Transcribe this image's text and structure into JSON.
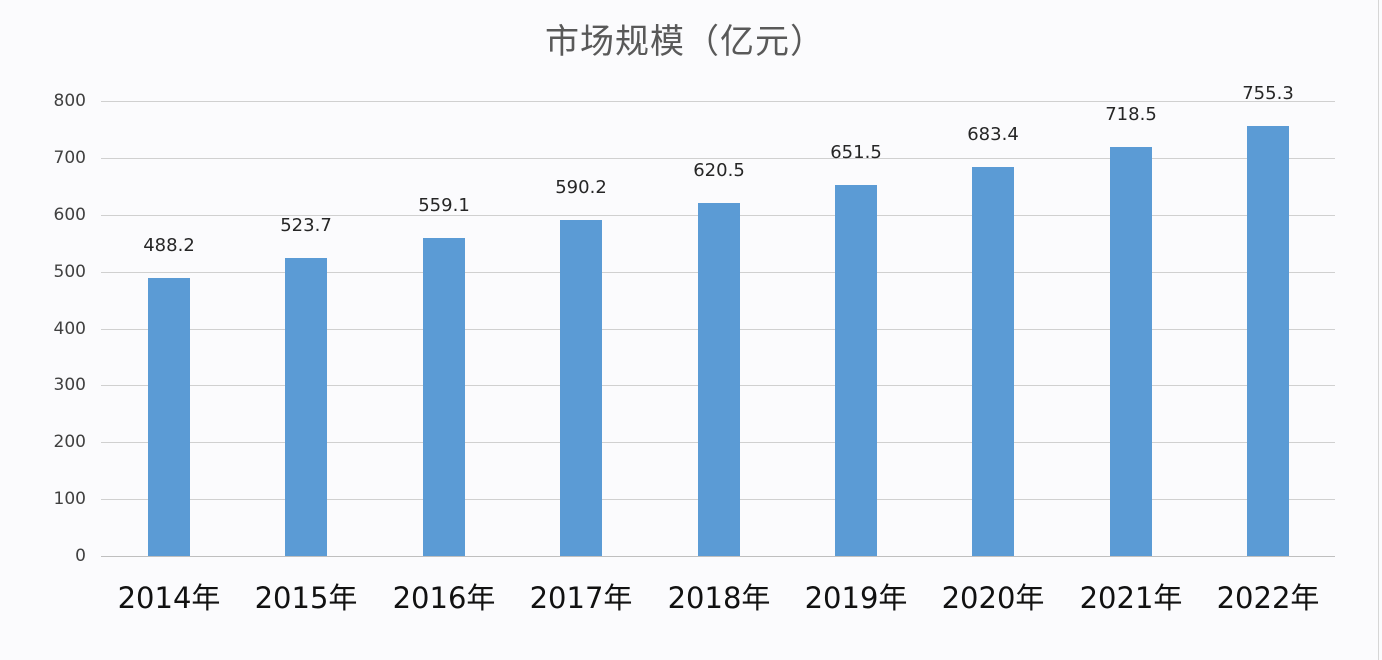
{
  "chart_data": {
    "type": "bar",
    "title": "市场规模（亿元）",
    "xlabel": "",
    "ylabel": "",
    "categories": [
      "2014年",
      "2015年",
      "2016年",
      "2017年",
      "2018年",
      "2019年",
      "2020年",
      "2021年",
      "2022年"
    ],
    "values": [
      488.2,
      523.7,
      559.1,
      590.2,
      620.5,
      651.5,
      683.4,
      718.5,
      755.3
    ],
    "data_labels": [
      "488.2",
      "523.7",
      "559.1",
      "590.2",
      "620.5",
      "651.5",
      "683.4",
      "718.5",
      "755.3"
    ],
    "ylim": [
      0,
      800
    ],
    "yticks": [
      "0",
      "100",
      "200",
      "300",
      "400",
      "500",
      "600",
      "700",
      "800"
    ],
    "grid": true,
    "legend": null,
    "bar_color": "#5b9bd5"
  }
}
